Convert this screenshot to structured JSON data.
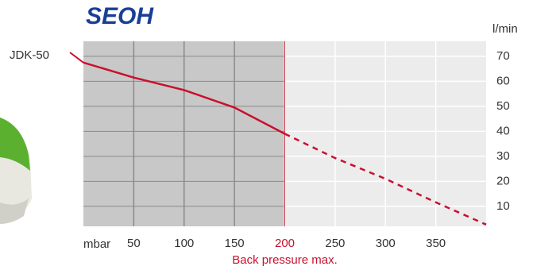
{
  "chart_data": {
    "type": "line",
    "logo": "SEOH",
    "series": [
      {
        "name": "JDK-50",
        "color": "#c8102e",
        "x": [
          0,
          50,
          100,
          150,
          200,
          250,
          300,
          350,
          400
        ],
        "values": [
          67.5,
          61.5,
          56.5,
          49.5,
          39,
          29.3,
          21,
          11.6,
          2.7
        ]
      }
    ],
    "x_label": "mbar",
    "y_label": "l/min",
    "annotation": {
      "text": "Back pressure max.",
      "x": 200
    },
    "xlim": [
      0,
      400
    ],
    "xticks": [
      50,
      100,
      150,
      200,
      250,
      300,
      350
    ],
    "ylim": [
      2,
      76
    ],
    "yticks": [
      10,
      20,
      30,
      40,
      50,
      60,
      70
    ],
    "grid": true
  }
}
